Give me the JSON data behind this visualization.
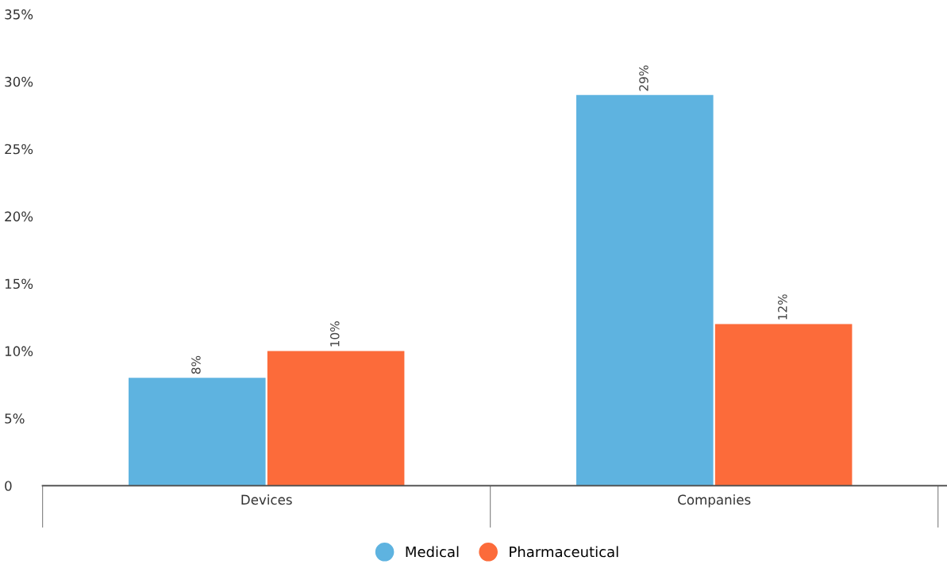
{
  "chart_data": {
    "type": "bar",
    "categories": [
      "Devices",
      "Companies"
    ],
    "series": [
      {
        "name": "Medical",
        "color": "#5eb3e0",
        "values": [
          8,
          29
        ],
        "value_labels": [
          "8%",
          "29%"
        ]
      },
      {
        "name": "Pharmaceutical",
        "color": "#fc6b3a",
        "values": [
          10,
          12
        ],
        "value_labels": [
          "10%",
          "12%"
        ]
      }
    ],
    "ylim": [
      0,
      35
    ],
    "yticks": [
      0,
      {
        "value": 5,
        "label": "5%"
      },
      {
        "value": 10,
        "label": "10%"
      },
      {
        "value": 15,
        "label": "15%"
      },
      {
        "value": 20,
        "label": "20%"
      },
      {
        "value": 25,
        "label": "25%"
      },
      {
        "value": 30,
        "label": "30%"
      },
      {
        "value": 35,
        "label": "35%"
      }
    ],
    "grid": false,
    "legend": "bottom"
  }
}
